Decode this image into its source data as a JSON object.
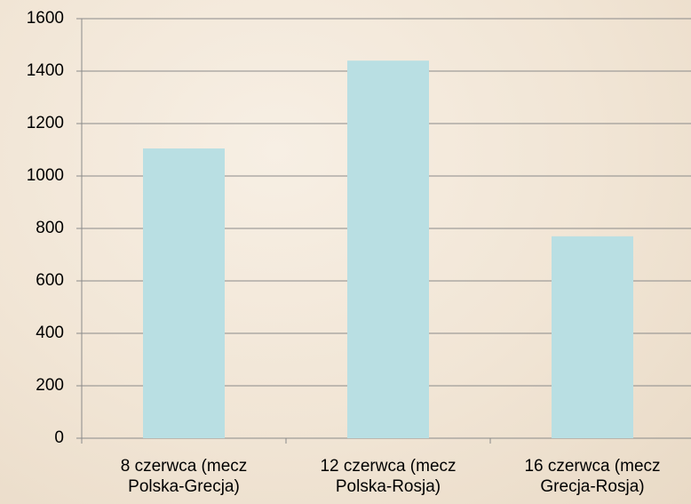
{
  "chart_data": {
    "type": "bar",
    "categories": [
      "8 czerwca (mecz Polska-Grecja)",
      "12 czerwca (mecz Polska-Rosja)",
      "16 czerwca (mecz Grecja-Rosja)"
    ],
    "values": [
      1105,
      1440,
      770
    ],
    "color": "#b9dfe3",
    "ylim": [
      0,
      1600
    ],
    "yticks": [
      0,
      200,
      400,
      600,
      800,
      1000,
      1200,
      1400,
      1600
    ],
    "grid": true
  }
}
